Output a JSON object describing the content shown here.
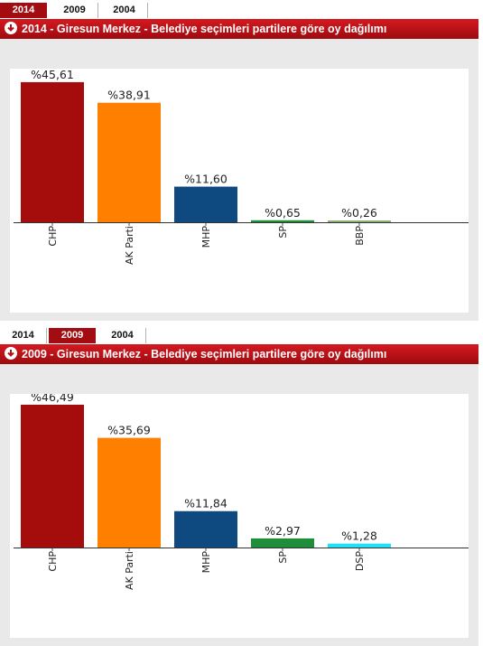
{
  "panels": [
    {
      "tabs": [
        {
          "label": "2014",
          "active": true
        },
        {
          "label": "2009",
          "active": false
        },
        {
          "label": "2004",
          "active": false
        }
      ],
      "title": "2014 - Giresun Merkez - Belediye seçimleri partilere göre oy dağılımı",
      "chart_data": {
        "type": "bar",
        "categories": [
          "CHP",
          "AK Parti",
          "MHP",
          "SP",
          "BBP"
        ],
        "values": [
          45.61,
          38.91,
          11.6,
          0.65,
          0.26
        ],
        "value_labels": [
          "%45,61",
          "%38,91",
          "%11,60",
          "%0,65",
          "%0,26"
        ],
        "colors": [
          "#a50d0d",
          "#ff7f00",
          "#0e4a80",
          "#1e8e3a",
          "#8fae78"
        ],
        "ylim": [
          0,
          50
        ],
        "grid": false
      }
    },
    {
      "tabs": [
        {
          "label": "2014",
          "active": false
        },
        {
          "label": "2009",
          "active": true
        },
        {
          "label": "2004",
          "active": false
        }
      ],
      "title": "2009 - Giresun Merkez - Belediye seçimleri partilere göre oy dağılımı",
      "chart_data": {
        "type": "bar",
        "categories": [
          "CHP",
          "AK Parti",
          "MHP",
          "SP",
          "DSP"
        ],
        "values": [
          46.49,
          35.69,
          11.84,
          2.97,
          1.28
        ],
        "value_labels": [
          "%46,49",
          "%35,69",
          "%11,84",
          "%2,97",
          "%1,28"
        ],
        "colors": [
          "#a50d0d",
          "#ff7f00",
          "#0e4a80",
          "#1e8e3a",
          "#22e0f5"
        ],
        "ylim": [
          0,
          50
        ],
        "grid": false
      }
    }
  ]
}
